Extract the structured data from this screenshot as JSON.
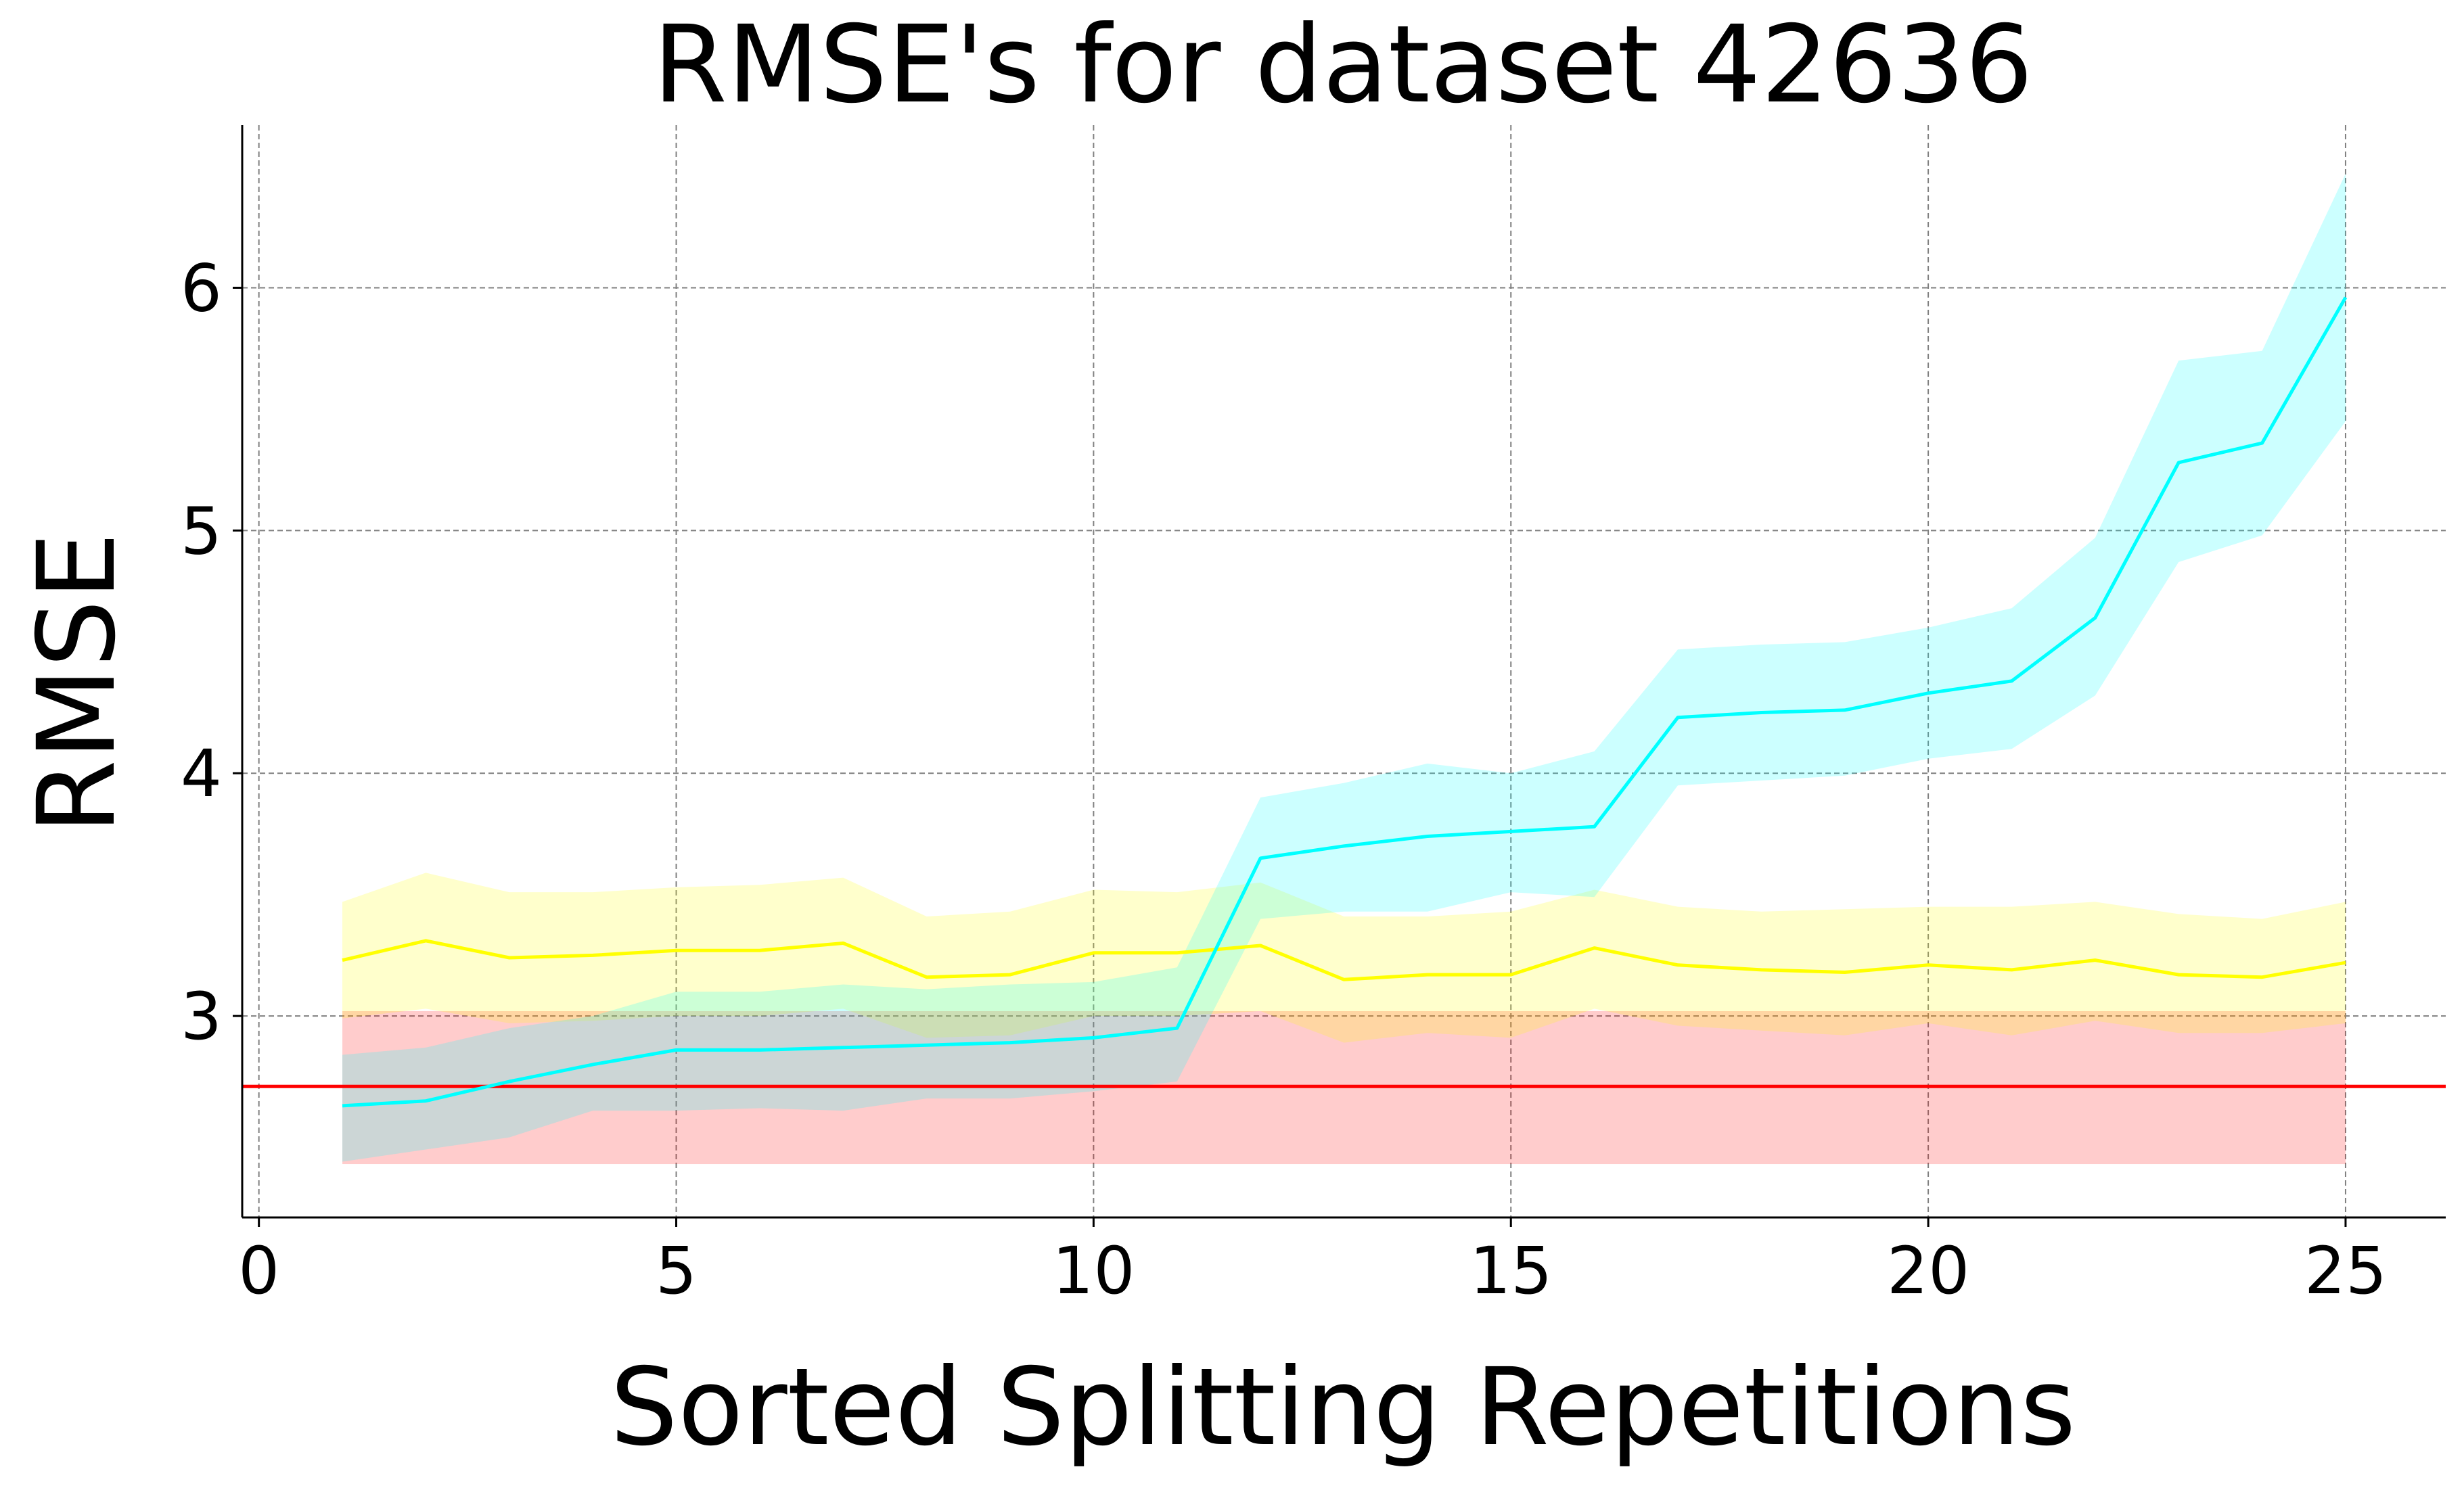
{
  "chart_data": {
    "type": "line",
    "title": "RMSE's for dataset 42636",
    "xlabel": "Sorted Splitting Repetitions",
    "ylabel": "RMSE",
    "xlim": [
      -0.2,
      26.2
    ],
    "ylim": [
      2.17,
      6.67
    ],
    "xticks": [
      0,
      5,
      10,
      15,
      20,
      25
    ],
    "yticks": [
      3,
      4,
      5,
      6
    ],
    "grid": true,
    "legend": "none",
    "x": [
      1,
      2,
      3,
      4,
      5,
      6,
      7,
      8,
      9,
      10,
      11,
      12,
      13,
      14,
      15,
      16,
      17,
      18,
      19,
      20,
      21,
      22,
      23,
      24,
      25
    ],
    "reference_band": {
      "color": "#ff0000",
      "lower": 2.39,
      "upper": 3.02,
      "x_range": [
        1,
        25
      ]
    },
    "reference_line": {
      "color": "#ff0000",
      "value": 2.71
    },
    "series": [
      {
        "color": "#ffff00",
        "values": [
          3.23,
          3.31,
          3.24,
          3.25,
          3.27,
          3.27,
          3.3,
          3.16,
          3.17,
          3.26,
          3.26,
          3.29,
          3.15,
          3.17,
          3.17,
          3.28,
          3.21,
          3.19,
          3.18,
          3.21,
          3.19,
          3.23,
          3.17,
          3.16,
          3.22
        ],
        "lower": [
          2.99,
          3.03,
          2.97,
          2.98,
          3.0,
          3.0,
          3.03,
          2.91,
          2.92,
          3.0,
          3.0,
          3.02,
          2.89,
          2.93,
          2.91,
          3.03,
          2.96,
          2.94,
          2.92,
          2.97,
          2.92,
          2.98,
          2.93,
          2.93,
          2.97
        ],
        "upper": [
          3.47,
          3.59,
          3.51,
          3.51,
          3.53,
          3.54,
          3.57,
          3.41,
          3.43,
          3.52,
          3.51,
          3.55,
          3.41,
          3.41,
          3.43,
          3.52,
          3.45,
          3.43,
          3.44,
          3.45,
          3.45,
          3.47,
          3.42,
          3.4,
          3.47
        ]
      },
      {
        "color": "#00ffff",
        "values": [
          2.63,
          2.65,
          2.73,
          2.8,
          2.86,
          2.86,
          2.87,
          2.88,
          2.89,
          2.91,
          2.95,
          3.65,
          3.7,
          3.74,
          3.76,
          3.78,
          4.23,
          4.25,
          4.26,
          4.33,
          4.38,
          4.64,
          5.28,
          5.36,
          5.96
        ],
        "lower": [
          2.4,
          2.45,
          2.5,
          2.61,
          2.61,
          2.62,
          2.61,
          2.66,
          2.66,
          2.69,
          2.73,
          3.4,
          3.43,
          3.43,
          3.51,
          3.49,
          3.95,
          3.97,
          3.99,
          4.06,
          4.1,
          4.32,
          4.87,
          4.98,
          5.45
        ],
        "upper": [
          2.84,
          2.87,
          2.95,
          3.0,
          3.1,
          3.1,
          3.13,
          3.11,
          3.13,
          3.14,
          3.2,
          3.9,
          3.96,
          4.04,
          4.0,
          4.09,
          4.51,
          4.53,
          4.54,
          4.6,
          4.68,
          4.97,
          5.7,
          5.74,
          6.47
        ]
      }
    ]
  }
}
